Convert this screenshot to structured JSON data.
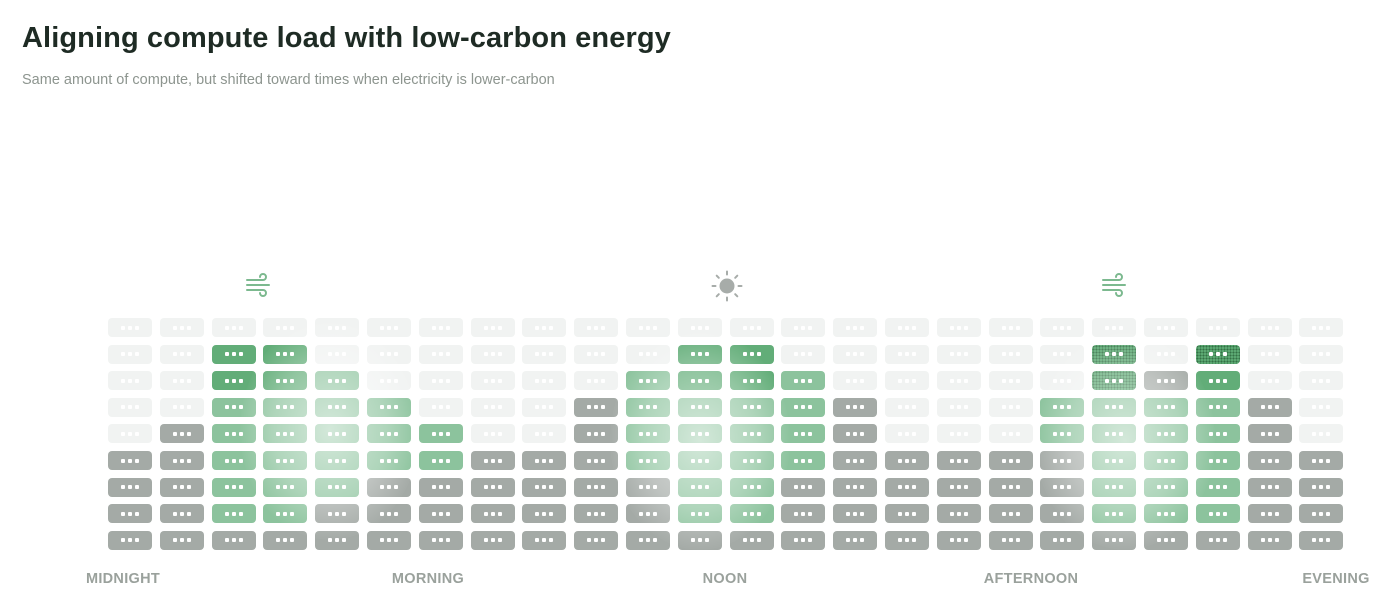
{
  "title": "Aligning compute load with low-carbon energy",
  "subtitle": "Same amount of compute, but shifted toward times when electricity is lower-carbon",
  "icons": {
    "left": "wind-icon",
    "center": "sun-icon",
    "right": "wind-icon"
  },
  "time_labels": {
    "midnight": "MIDNIGHT",
    "morning": "MORNING",
    "noon": "NOON",
    "afternoon": "AFTERNOON",
    "evening": "EVENING"
  },
  "colors": {
    "empty": "#f1f3f2",
    "baseline_load": "#a4aaa6",
    "shifted_load": "#8cc39d",
    "shifted_load_strong": "#62ad78",
    "title": "#1e2b24",
    "subtitle": "#8d958f",
    "labels": "#9aa19c"
  },
  "grid": {
    "columns": 24,
    "rows": 9,
    "column_heights": [
      4,
      5,
      8,
      8,
      7,
      6,
      5,
      4,
      4,
      6,
      7,
      8,
      8,
      7,
      6,
      4,
      4,
      4,
      6,
      8,
      7,
      8,
      6,
      4
    ],
    "gray_top_rows": [
      4,
      4,
      4,
      4,
      4,
      4,
      4,
      4,
      4,
      5,
      4,
      4,
      4,
      4,
      5,
      4,
      4,
      4,
      4,
      4,
      4,
      4,
      5,
      4
    ],
    "green_cells": {
      "2": [
        1,
        2,
        3,
        4,
        5,
        6,
        7
      ],
      "3": [
        1,
        2,
        3,
        4,
        5,
        6,
        7
      ],
      "4": [
        2,
        3,
        4,
        5,
        6
      ],
      "5": [
        3,
        4,
        5
      ],
      "6": [
        4,
        5
      ],
      "10": [
        2,
        3,
        4,
        5
      ],
      "11": [
        1,
        2,
        3,
        4,
        5,
        6,
        7
      ],
      "12": [
        1,
        2,
        3,
        4,
        5,
        6,
        7
      ],
      "13": [
        2,
        3,
        4,
        5
      ],
      "18": [
        3,
        4
      ],
      "19": [
        1,
        2,
        3,
        4,
        5,
        6,
        7
      ],
      "20": [
        3,
        4,
        5,
        6,
        7
      ],
      "21": [
        1,
        2,
        3,
        4,
        5,
        6,
        7
      ]
    },
    "dotted_cells": {
      "19": [
        1,
        2
      ],
      "21": [
        1
      ]
    }
  }
}
